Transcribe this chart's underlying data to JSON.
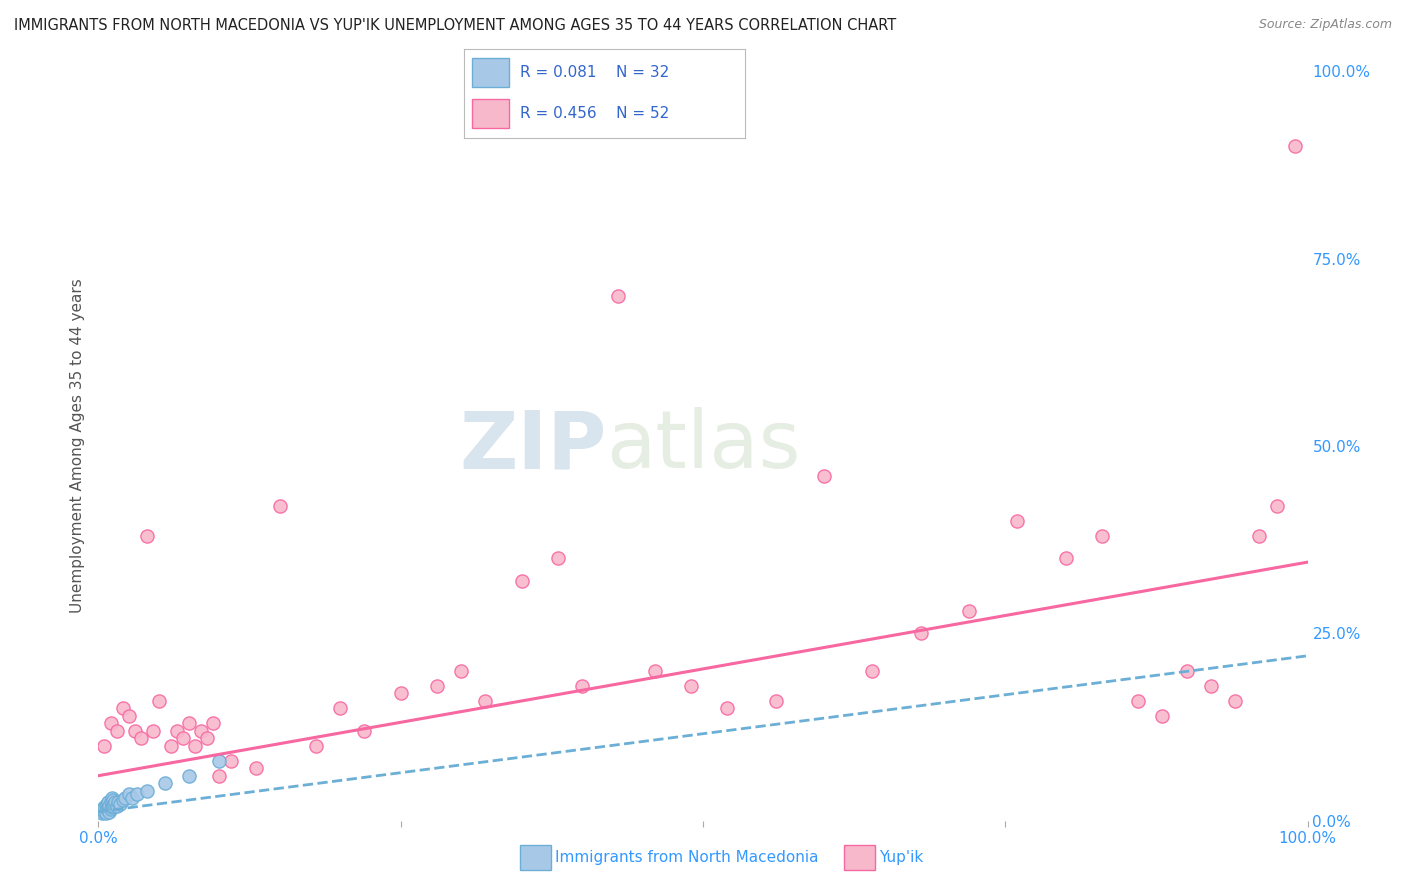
{
  "title": "IMMIGRANTS FROM NORTH MACEDONIA VS YUP'IK UNEMPLOYMENT AMONG AGES 35 TO 44 YEARS CORRELATION CHART",
  "source": "Source: ZipAtlas.com",
  "ylabel": "Unemployment Among Ages 35 to 44 years",
  "legend_label1": "Immigrants from North Macedonia",
  "legend_label2": "Yup'ik",
  "r1": 0.081,
  "n1": 32,
  "r2": 0.456,
  "n2": 52,
  "color1": "#a8c8e8",
  "color2": "#f8b8cc",
  "line1_color": "#6baed6",
  "line2_color": "#f768a1",
  "xmin": 0.0,
  "xmax": 1.0,
  "ymin": 0.0,
  "ymax": 1.0,
  "right_yticks": [
    0.0,
    0.25,
    0.5,
    0.75,
    1.0
  ],
  "right_yticklabels": [
    "0.0%",
    "25.0%",
    "50.0%",
    "75.0%",
    "100.0%"
  ],
  "bottom_xtick_left": "0.0%",
  "bottom_xtick_right": "100.0%",
  "background_color": "#ffffff",
  "scatter1_x": [
    0.003,
    0.004,
    0.005,
    0.005,
    0.006,
    0.006,
    0.007,
    0.007,
    0.008,
    0.008,
    0.009,
    0.009,
    0.01,
    0.01,
    0.011,
    0.011,
    0.012,
    0.012,
    0.013,
    0.014,
    0.015,
    0.016,
    0.018,
    0.02,
    0.022,
    0.025,
    0.028,
    0.032,
    0.04,
    0.055,
    0.075,
    0.1
  ],
  "scatter1_y": [
    0.01,
    0.015,
    0.012,
    0.018,
    0.01,
    0.02,
    0.015,
    0.022,
    0.018,
    0.025,
    0.012,
    0.02,
    0.015,
    0.025,
    0.018,
    0.03,
    0.02,
    0.028,
    0.022,
    0.025,
    0.02,
    0.025,
    0.022,
    0.028,
    0.03,
    0.035,
    0.03,
    0.035,
    0.04,
    0.05,
    0.06,
    0.08
  ],
  "scatter2_x": [
    0.005,
    0.01,
    0.015,
    0.02,
    0.025,
    0.03,
    0.035,
    0.04,
    0.045,
    0.05,
    0.06,
    0.065,
    0.07,
    0.075,
    0.08,
    0.085,
    0.09,
    0.095,
    0.1,
    0.11,
    0.13,
    0.15,
    0.18,
    0.2,
    0.22,
    0.25,
    0.28,
    0.3,
    0.32,
    0.35,
    0.38,
    0.4,
    0.43,
    0.46,
    0.49,
    0.52,
    0.56,
    0.6,
    0.64,
    0.68,
    0.72,
    0.76,
    0.8,
    0.83,
    0.86,
    0.88,
    0.9,
    0.92,
    0.94,
    0.96,
    0.975,
    0.99
  ],
  "scatter2_y": [
    0.1,
    0.13,
    0.12,
    0.15,
    0.14,
    0.12,
    0.11,
    0.38,
    0.12,
    0.16,
    0.1,
    0.12,
    0.11,
    0.13,
    0.1,
    0.12,
    0.11,
    0.13,
    0.06,
    0.08,
    0.07,
    0.42,
    0.1,
    0.15,
    0.12,
    0.17,
    0.18,
    0.2,
    0.16,
    0.32,
    0.35,
    0.18,
    0.7,
    0.2,
    0.18,
    0.15,
    0.16,
    0.46,
    0.2,
    0.25,
    0.28,
    0.4,
    0.35,
    0.38,
    0.16,
    0.14,
    0.2,
    0.18,
    0.16,
    0.38,
    0.42,
    0.9
  ],
  "line1_x0": 0.0,
  "line1_x1": 1.0,
  "line1_y0": 0.012,
  "line1_y1": 0.22,
  "line2_x0": 0.0,
  "line2_x1": 1.0,
  "line2_y0": 0.06,
  "line2_y1": 0.345,
  "watermark_zip": "ZIP",
  "watermark_atlas": "atlas",
  "grid_color": "#cccccc",
  "title_color": "#222222",
  "axis_label_color": "#555555",
  "tick_color": "#3399ff",
  "legend_text_color": "#3366cc"
}
